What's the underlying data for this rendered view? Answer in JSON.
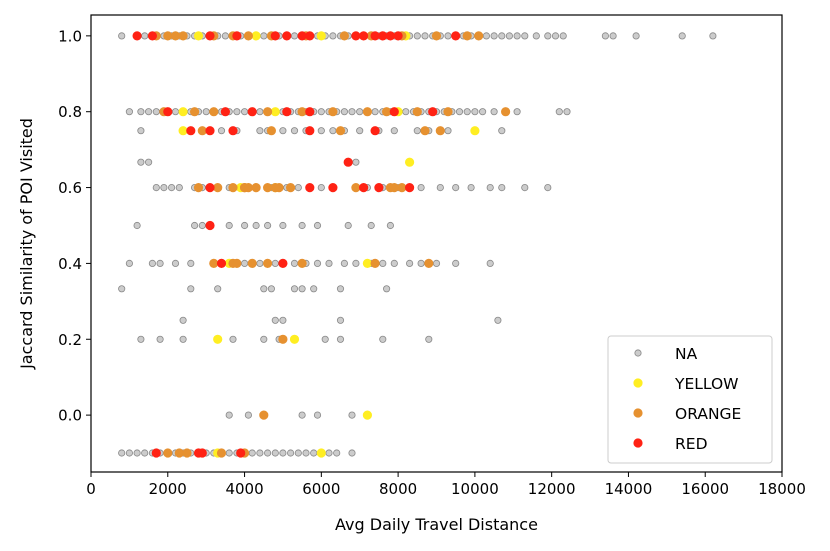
{
  "chart_data": {
    "type": "scatter",
    "title": "",
    "xlabel": "Avg Daily Travel Distance",
    "ylabel": "Jaccard Similarity of POI Visited",
    "xlim": [
      0,
      18000
    ],
    "ylim": [
      -0.15,
      1.055
    ],
    "xticks": [
      0,
      2000,
      4000,
      6000,
      8000,
      10000,
      12000,
      14000,
      16000,
      18000
    ],
    "yticks": [
      0.0,
      0.2,
      0.4,
      0.6,
      0.8,
      1.0
    ],
    "legend_position": "bottom-right",
    "series": [
      {
        "name": "NA",
        "color": "#808080",
        "edge": "#000000",
        "alpha": 0.4,
        "x": [
          800,
          1200,
          1400,
          1600,
          1900,
          2100,
          2300,
          2500,
          2700,
          2900,
          3100,
          3300,
          3500,
          3700,
          3900,
          4100,
          4300,
          4500,
          4700,
          4900,
          5100,
          5300,
          5500,
          5700,
          5900,
          6100,
          6300,
          6500,
          6700,
          6900,
          7100,
          7300,
          7500,
          7700,
          7900,
          8100,
          8300,
          8500,
          8700,
          8900,
          9100,
          9300,
          9500,
          9700,
          9900,
          10100,
          10300,
          10500,
          10700,
          10900,
          11100,
          11300,
          11600,
          11900,
          12100,
          12300,
          13400,
          13600,
          14200,
          15400,
          16200,
          1000,
          1300,
          1500,
          1700,
          2000,
          2200,
          2400,
          2600,
          2800,
          3000,
          3200,
          3400,
          3600,
          3800,
          4000,
          4200,
          4400,
          4600,
          4800,
          5000,
          5200,
          5400,
          5600,
          5800,
          6000,
          6200,
          6400,
          6600,
          6800,
          7000,
          7200,
          7400,
          7600,
          7800,
          8000,
          8200,
          8400,
          8600,
          8800,
          9000,
          9200,
          9400,
          9600,
          9800,
          10000,
          10200,
          10500,
          10800,
          11100,
          12200,
          12400,
          1300,
          2600,
          2900,
          3100,
          3400,
          3800,
          4400,
          4600,
          5000,
          5300,
          5600,
          6000,
          6300,
          6600,
          7000,
          7500,
          7900,
          8500,
          8800,
          9300,
          10700,
          1300,
          1500,
          6900,
          1700,
          1900,
          2100,
          2300,
          2700,
          2900,
          3300,
          3600,
          4000,
          4300,
          4700,
          5100,
          5400,
          5700,
          6000,
          6300,
          6900,
          7200,
          7600,
          8000,
          8300,
          8600,
          9100,
          9500,
          9900,
          10400,
          10700,
          11300,
          11900,
          1200,
          2700,
          2900,
          3100,
          3600,
          4000,
          4300,
          4600,
          5000,
          5500,
          5900,
          6700,
          7300,
          7800,
          1000,
          1600,
          1800,
          2200,
          2600,
          3200,
          3700,
          4000,
          4400,
          4800,
          5300,
          5600,
          5900,
          6200,
          6600,
          6900,
          7300,
          7600,
          7900,
          8300,
          8600,
          9000,
          9500,
          10400,
          800,
          2600,
          3300,
          4500,
          4700,
          5300,
          5500,
          5800,
          6500,
          7700,
          2400,
          4800,
          5000,
          6500,
          10600,
          1300,
          1800,
          2400,
          3700,
          4500,
          4900,
          6100,
          6500,
          7600,
          8800,
          3600,
          4100,
          5500,
          5900,
          6800,
          800,
          1000,
          1200,
          1400,
          1600,
          1800,
          2000,
          2200,
          2400,
          2600,
          2800,
          3000,
          3200,
          3400,
          3600,
          3800,
          4000,
          4200,
          4400,
          4600,
          4800,
          5000,
          5200,
          5400,
          5600,
          5800,
          6000,
          6200,
          6400,
          6800
        ],
        "y": [
          1,
          1,
          1,
          1,
          1,
          1,
          1,
          1,
          1,
          1,
          1,
          1,
          1,
          1,
          1,
          1,
          1,
          1,
          1,
          1,
          1,
          1,
          1,
          1,
          1,
          1,
          1,
          1,
          1,
          1,
          1,
          1,
          1,
          1,
          1,
          1,
          1,
          1,
          1,
          1,
          1,
          1,
          1,
          1,
          1,
          1,
          1,
          1,
          1,
          1,
          1,
          1,
          1,
          1,
          1,
          1,
          1,
          1,
          1,
          1,
          1,
          0.8,
          0.8,
          0.8,
          0.8,
          0.8,
          0.8,
          0.8,
          0.8,
          0.8,
          0.8,
          0.8,
          0.8,
          0.8,
          0.8,
          0.8,
          0.8,
          0.8,
          0.8,
          0.8,
          0.8,
          0.8,
          0.8,
          0.8,
          0.8,
          0.8,
          0.8,
          0.8,
          0.8,
          0.8,
          0.8,
          0.8,
          0.8,
          0.8,
          0.8,
          0.8,
          0.8,
          0.8,
          0.8,
          0.8,
          0.8,
          0.8,
          0.8,
          0.8,
          0.8,
          0.8,
          0.8,
          0.8,
          0.8,
          0.8,
          0.8,
          0.8,
          0.75,
          0.75,
          0.75,
          0.75,
          0.75,
          0.75,
          0.75,
          0.75,
          0.75,
          0.75,
          0.75,
          0.75,
          0.75,
          0.75,
          0.75,
          0.75,
          0.75,
          0.75,
          0.75,
          0.75,
          0.75,
          0.667,
          0.667,
          0.667,
          0.6,
          0.6,
          0.6,
          0.6,
          0.6,
          0.6,
          0.6,
          0.6,
          0.6,
          0.6,
          0.6,
          0.6,
          0.6,
          0.6,
          0.6,
          0.6,
          0.6,
          0.6,
          0.6,
          0.6,
          0.6,
          0.6,
          0.6,
          0.6,
          0.6,
          0.6,
          0.6,
          0.6,
          0.6,
          0.5,
          0.5,
          0.5,
          0.5,
          0.5,
          0.5,
          0.5,
          0.5,
          0.5,
          0.5,
          0.5,
          0.5,
          0.5,
          0.5,
          0.4,
          0.4,
          0.4,
          0.4,
          0.4,
          0.4,
          0.4,
          0.4,
          0.4,
          0.4,
          0.4,
          0.4,
          0.4,
          0.4,
          0.4,
          0.4,
          0.4,
          0.4,
          0.4,
          0.4,
          0.4,
          0.4,
          0.4,
          0.4,
          0.333,
          0.333,
          0.333,
          0.333,
          0.333,
          0.333,
          0.333,
          0.333,
          0.333,
          0.333,
          0.25,
          0.25,
          0.25,
          0.25,
          0.25,
          0.2,
          0.2,
          0.2,
          0.2,
          0.2,
          0.2,
          0.2,
          0.2,
          0.2,
          0.2,
          0,
          0,
          0,
          0,
          0,
          -0.1,
          -0.1,
          -0.1,
          -0.1,
          -0.1,
          -0.1,
          -0.1,
          -0.1,
          -0.1,
          -0.1,
          -0.1,
          -0.1,
          -0.1,
          -0.1,
          -0.1,
          -0.1,
          -0.1,
          -0.1,
          -0.1,
          -0.1,
          -0.1,
          -0.1,
          -0.1,
          -0.1,
          -0.1,
          -0.1,
          -0.1,
          -0.1,
          -0.1,
          -0.1
        ]
      },
      {
        "name": "YELLOW",
        "color": "#ffee22",
        "edge": "#ffee22",
        "alpha": 1,
        "x": [
          2800,
          4300,
          6000,
          8200,
          2400,
          4800,
          8000,
          2400,
          10000,
          8300,
          3900,
          4800,
          3600,
          7200,
          3300,
          5300,
          7200,
          3300,
          6000
        ],
        "y": [
          1,
          1,
          1,
          1,
          0.8,
          0.8,
          0.8,
          0.75,
          0.75,
          0.667,
          0.6,
          0.6,
          0.4,
          0.4,
          0.2,
          0.2,
          0,
          -0.1,
          -0.1
        ]
      },
      {
        "name": "ORANGE",
        "color": "#e69130",
        "edge": "#e69130",
        "alpha": 1,
        "x": [
          1700,
          2000,
          2200,
          2400,
          3200,
          3700,
          4100,
          4700,
          5600,
          6600,
          7300,
          8100,
          9000,
          9800,
          10100,
          1900,
          2700,
          3200,
          4600,
          5500,
          6300,
          7200,
          7700,
          8500,
          9300,
          10800,
          2900,
          4700,
          6500,
          8700,
          9100,
          3700,
          4000,
          4600,
          4900,
          5200,
          6900,
          8100,
          2800,
          3300,
          4000,
          4100,
          4300,
          4800,
          7800,
          7900,
          3200,
          3700,
          3800,
          4200,
          4600,
          5500,
          7400,
          8800,
          5000,
          4500,
          2000,
          2300,
          2500,
          3400,
          4000
        ],
        "y": [
          1,
          1,
          1,
          1,
          1,
          1,
          1,
          1,
          1,
          1,
          1,
          1,
          1,
          1,
          1,
          0.8,
          0.8,
          0.8,
          0.8,
          0.8,
          0.8,
          0.8,
          0.8,
          0.8,
          0.8,
          0.8,
          0.75,
          0.75,
          0.75,
          0.75,
          0.75,
          0.6,
          0.6,
          0.6,
          0.6,
          0.6,
          0.6,
          0.6,
          0.6,
          0.6,
          0.6,
          0.6,
          0.6,
          0.6,
          0.6,
          0.6,
          0.4,
          0.4,
          0.4,
          0.4,
          0.4,
          0.4,
          0.4,
          0.4,
          0.2,
          0,
          -0.1,
          -0.1,
          -0.1,
          -0.1,
          -0.1
        ]
      },
      {
        "name": "RED",
        "color": "#ff2214",
        "edge": "#ff2214",
        "alpha": 1,
        "x": [
          1200,
          1600,
          3100,
          3800,
          4800,
          5100,
          5500,
          5700,
          6900,
          7100,
          7400,
          7600,
          7800,
          8000,
          9500,
          2000,
          3500,
          4200,
          5100,
          5700,
          7900,
          8900,
          2600,
          3100,
          3700,
          5700,
          7400,
          6700,
          3100,
          5700,
          6300,
          7100,
          7500,
          8300,
          3100,
          3400,
          5000,
          1700,
          2800,
          2900,
          3900
        ],
        "y": [
          1,
          1,
          1,
          1,
          1,
          1,
          1,
          1,
          1,
          1,
          1,
          1,
          1,
          1,
          1,
          0.8,
          0.8,
          0.8,
          0.8,
          0.8,
          0.8,
          0.8,
          0.75,
          0.75,
          0.75,
          0.75,
          0.75,
          0.667,
          0.6,
          0.6,
          0.6,
          0.6,
          0.6,
          0.6,
          0.5,
          0.4,
          0.4,
          -0.1,
          -0.1,
          -0.1,
          -0.1
        ]
      }
    ]
  }
}
